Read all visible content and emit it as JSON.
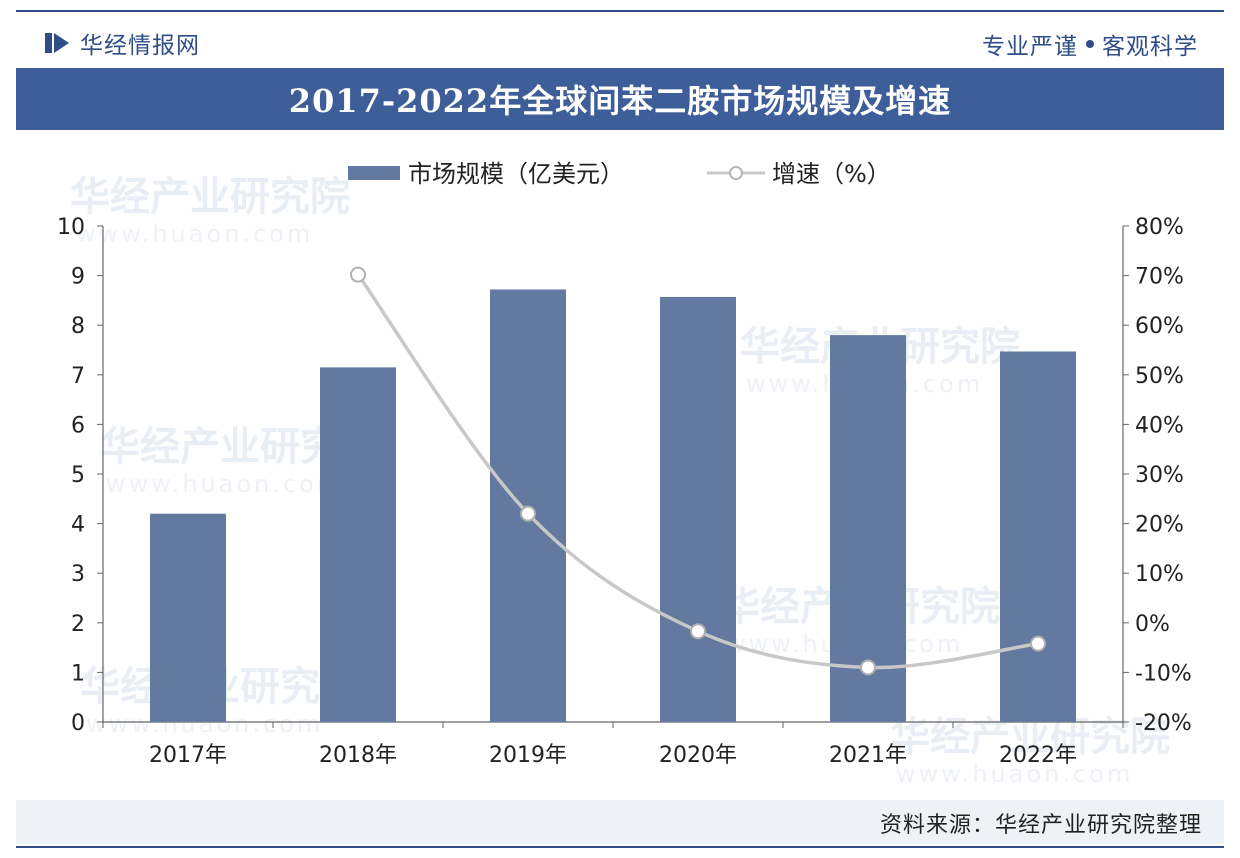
{
  "header": {
    "brand": "华经情报网",
    "slogan_left": "专业严谨",
    "slogan_right": "客观科学"
  },
  "watermark": {
    "text": "华经产业研究院",
    "url": "www.huaon.com"
  },
  "footer": {
    "source": "资料来源：华经产业研究院整理"
  },
  "colors": {
    "brand": "#2f4d87",
    "title_bar": "#3e5e9a",
    "bar": "#63799f",
    "line": "#c8c8c8"
  },
  "chart_data": {
    "type": "bar",
    "title": "2017-2022年全球间苯二胺市场规模及增速",
    "categories": [
      "2017年",
      "2018年",
      "2019年",
      "2020年",
      "2021年",
      "2022年"
    ],
    "series": [
      {
        "name": "市场规模（亿美元）",
        "type": "bar",
        "axis": "left",
        "values": [
          4.2,
          7.15,
          8.72,
          8.57,
          7.8,
          7.47
        ]
      },
      {
        "name": "增速（%）",
        "type": "line",
        "axis": "right",
        "values": [
          null,
          70.2,
          22.0,
          -1.7,
          -9.0,
          -4.2
        ]
      }
    ],
    "y_left": {
      "min": 0,
      "max": 10,
      "ticks": [
        "0",
        "1",
        "2",
        "3",
        "4",
        "5",
        "6",
        "7",
        "8",
        "9",
        "10"
      ]
    },
    "y_right": {
      "min": -20,
      "max": 80,
      "ticks": [
        "-20%",
        "-10%",
        "0%",
        "10%",
        "20%",
        "30%",
        "40%",
        "50%",
        "60%",
        "70%",
        "80%"
      ]
    },
    "legend_position": "top-center",
    "grid": false
  }
}
